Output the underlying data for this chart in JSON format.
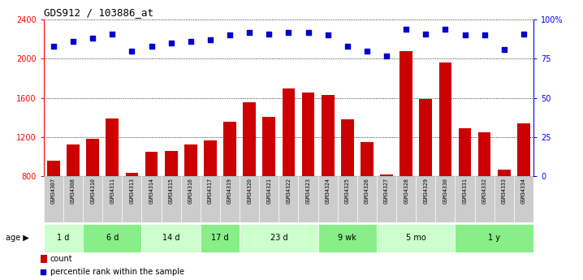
{
  "title": "GDS912 / 103886_at",
  "samples": [
    "GSM34307",
    "GSM34308",
    "GSM34310",
    "GSM34311",
    "GSM34313",
    "GSM34314",
    "GSM34315",
    "GSM34316",
    "GSM34317",
    "GSM34319",
    "GSM34320",
    "GSM34321",
    "GSM34322",
    "GSM34323",
    "GSM34324",
    "GSM34325",
    "GSM34326",
    "GSM34327",
    "GSM34328",
    "GSM34329",
    "GSM34330",
    "GSM34331",
    "GSM34332",
    "GSM34333",
    "GSM34334"
  ],
  "counts": [
    960,
    1130,
    1180,
    1390,
    840,
    1050,
    1060,
    1130,
    1170,
    1360,
    1560,
    1410,
    1700,
    1660,
    1630,
    1380,
    1150,
    820,
    2080,
    1590,
    1960,
    1290,
    1250,
    870,
    1340
  ],
  "percentiles": [
    83,
    86,
    88,
    91,
    80,
    83,
    85,
    86,
    87,
    90,
    92,
    91,
    92,
    92,
    90,
    83,
    80,
    77,
    94,
    91,
    94,
    90,
    90,
    81,
    91
  ],
  "age_groups": [
    {
      "label": "1 d",
      "start": 0,
      "end": 2
    },
    {
      "label": "6 d",
      "start": 2,
      "end": 5
    },
    {
      "label": "14 d",
      "start": 5,
      "end": 8
    },
    {
      "label": "17 d",
      "start": 8,
      "end": 10
    },
    {
      "label": "23 d",
      "start": 10,
      "end": 14
    },
    {
      "label": "9 wk",
      "start": 14,
      "end": 17
    },
    {
      "label": "5 mo",
      "start": 17,
      "end": 21
    },
    {
      "label": "1 y",
      "start": 21,
      "end": 25
    }
  ],
  "ylim_left": [
    800,
    2400
  ],
  "ylim_right": [
    0,
    100
  ],
  "yticks_left": [
    800,
    1200,
    1600,
    2000,
    2400
  ],
  "yticks_right": [
    0,
    25,
    50,
    75,
    100
  ],
  "bar_color": "#cc0000",
  "dot_color": "#0000cc",
  "bg_color": "#ffffff",
  "age_colors": [
    "#ccffcc",
    "#88ee88"
  ],
  "sample_bg": "#cccccc",
  "legend_count_color": "#cc0000",
  "legend_pct_color": "#0000cc"
}
